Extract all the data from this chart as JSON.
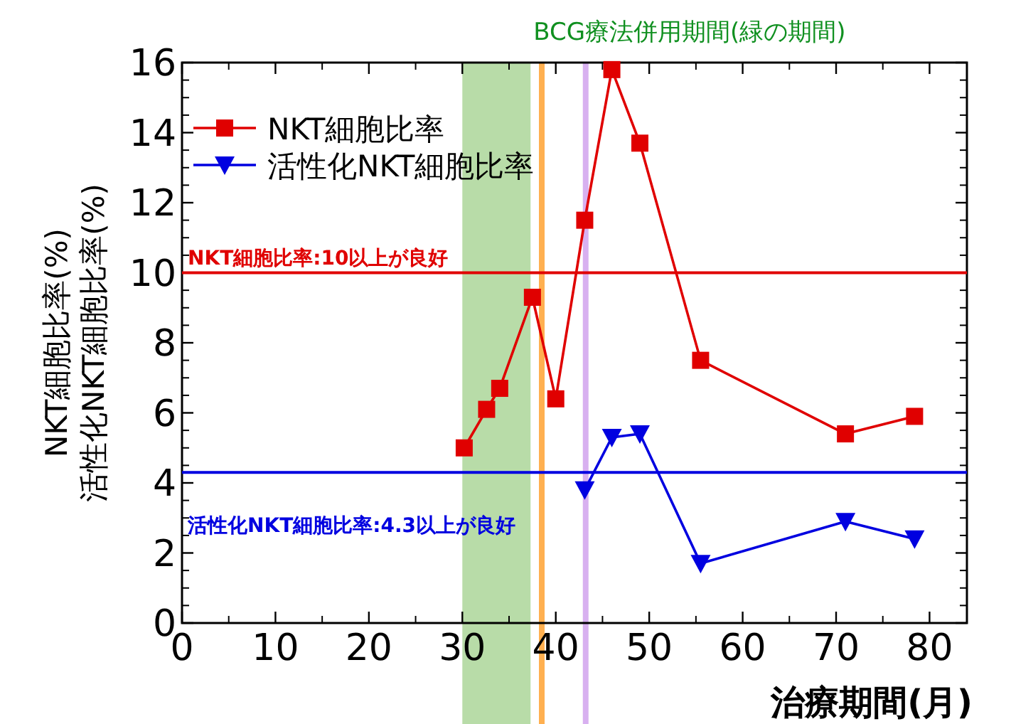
{
  "chart_data": {
    "type": "line",
    "xlabel": "治療期間(月)",
    "ylabel": "NKT細胞比率(%)\n活性化NKT細胞比率(%)",
    "xlim": [
      0,
      84
    ],
    "ylim": [
      0,
      16
    ],
    "xticks": [
      0,
      10,
      20,
      30,
      40,
      50,
      60,
      70,
      80
    ],
    "yticks": [
      0,
      2,
      4,
      6,
      8,
      10,
      12,
      14,
      16
    ],
    "legend": "top left",
    "line_style": "solid",
    "series": [
      {
        "name": "NKT細胞比率",
        "color": "#e00000",
        "marker": "square",
        "x": [
          30.2,
          32.6,
          34,
          37.5,
          40,
          43.1,
          46,
          49,
          55.5,
          71,
          78.4
        ],
        "values": [
          5.0,
          6.1,
          6.7,
          9.3,
          6.4,
          11.5,
          15.8,
          13.7,
          7.5,
          5.4,
          5.9
        ]
      },
      {
        "name": "活性化NKT細胞比率",
        "color": "#0000e0",
        "marker": "triangle",
        "x": [
          43.1,
          46,
          49,
          55.5,
          71,
          78.4
        ],
        "values": [
          3.8,
          5.3,
          5.4,
          1.7,
          2.9,
          2.4
        ]
      }
    ],
    "ref_lines": [
      {
        "axis": "y",
        "value": 10,
        "label": "NKT細胞比率:10以上が良好",
        "color": "#e00000"
      },
      {
        "axis": "y",
        "value": 4.3,
        "label": "活性化NKT細胞比率:4.3以上が良好",
        "color": "#0000e0"
      },
      {
        "axis": "x",
        "value": 38.5,
        "color": "#ffb050"
      },
      {
        "axis": "x",
        "value": 43.2,
        "color": "#d8b0f0"
      }
    ],
    "bands": [
      {
        "axis": "x",
        "from": 30,
        "to": 37.3,
        "label": "BCG療法併用期間(緑の期間)",
        "color": "#b8dca8"
      }
    ]
  }
}
